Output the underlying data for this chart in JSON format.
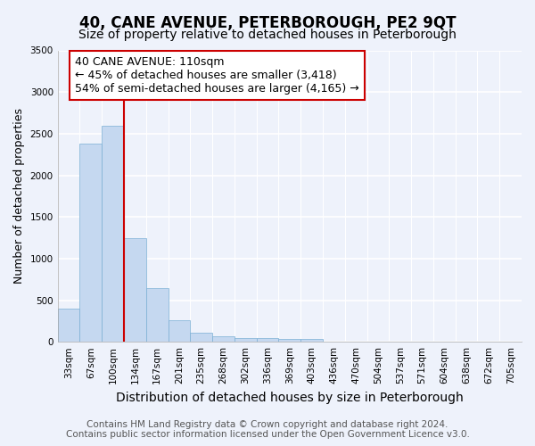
{
  "title": "40, CANE AVENUE, PETERBOROUGH, PE2 9QT",
  "subtitle": "Size of property relative to detached houses in Peterborough",
  "xlabel": "Distribution of detached houses by size in Peterborough",
  "ylabel": "Number of detached properties",
  "bin_labels": [
    "33sqm",
    "67sqm",
    "100sqm",
    "134sqm",
    "167sqm",
    "201sqm",
    "235sqm",
    "268sqm",
    "302sqm",
    "336sqm",
    "369sqm",
    "403sqm",
    "436sqm",
    "470sqm",
    "504sqm",
    "537sqm",
    "571sqm",
    "604sqm",
    "638sqm",
    "672sqm",
    "705sqm"
  ],
  "bar_values": [
    400,
    2380,
    2600,
    1250,
    640,
    255,
    110,
    70,
    50,
    40,
    30,
    35,
    0,
    0,
    0,
    0,
    0,
    0,
    0,
    0,
    0
  ],
  "bar_color": "#c5d8f0",
  "bar_edge_color": "#7bafd4",
  "red_line_x": 2.5,
  "annotation_text": "40 CANE AVENUE: 110sqm\n← 45% of detached houses are smaller (3,418)\n54% of semi-detached houses are larger (4,165) →",
  "annotation_box_facecolor": "#ffffff",
  "annotation_box_edgecolor": "#cc0000",
  "ylim": [
    0,
    3500
  ],
  "yticks": [
    0,
    500,
    1000,
    1500,
    2000,
    2500,
    3000,
    3500
  ],
  "background_color": "#eef2fb",
  "grid_color": "#ffffff",
  "title_fontsize": 12,
  "subtitle_fontsize": 10,
  "xlabel_fontsize": 10,
  "ylabel_fontsize": 9,
  "tick_fontsize": 7.5,
  "annotation_fontsize": 9,
  "footer_fontsize": 7.5,
  "footer1": "Contains HM Land Registry data © Crown copyright and database right 2024.",
  "footer2": "Contains public sector information licensed under the Open Government Licence v3.0."
}
